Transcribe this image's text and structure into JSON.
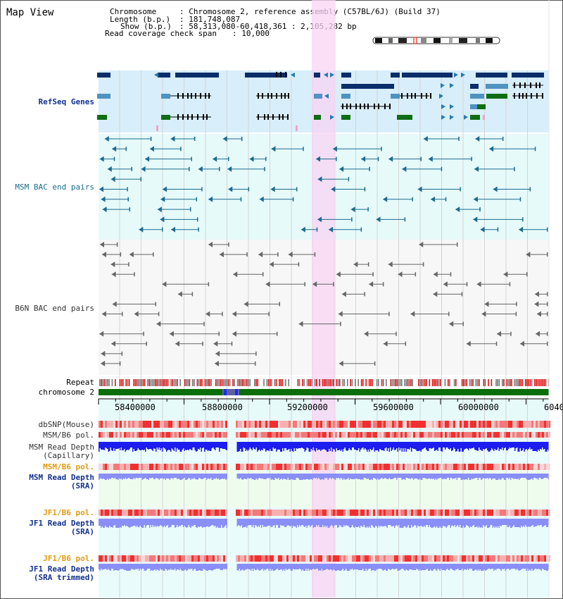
{
  "title": "Map View",
  "header": {
    "chromosome_label": "Chromosome",
    "chromosome_value": ": Chromosome 2, reference assembly (C57BL/6J) (Build 37)",
    "length_label": "Length (b.p.)",
    "length_value": ": 181,748,087",
    "show_label": "Show (b.p.)",
    "show_value": ": 58,313,080-60,418,361 : 2,105,282 bp",
    "coverage_label": "Read coverage check span",
    "coverage_value": ": 10,000"
  },
  "tracks": {
    "refseq": "RefSeq Genes",
    "msm_bac": "MSM BAC end pairs",
    "b6n_bac": "B6N BAC end pairs",
    "repeat": "Repeat",
    "chromosome": "chromosome 2",
    "dbsnp": "dbSNP(Mouse)",
    "msm_b6_pol": "MSM/B6 pol.",
    "msm_read_depth": "MSM Read Depth",
    "capillary": "(Capillary)",
    "msm_b6_pol2": "MSM/B6 pol.",
    "msm_read_depth_sra": "MSM Read Depth",
    "sra": "(SRA)",
    "jf1_b6_pol": "JF1/B6 pol.",
    "jf1_read_depth": "JF1 Read Depth",
    "jf1_sra": "(SRA)",
    "jf1_b6_pol2": "JF1/B6 pol.",
    "jf1_read_depth2": "JF1 Read Depth",
    "jf1_sra_trimmed": "(SRA trimmed)"
  },
  "axis": {
    "ticks": [
      "58400000",
      "58800000",
      "59200000",
      "59600000",
      "60000000",
      "6040"
    ]
  },
  "colors": {
    "refseq_bg": "#d8eefa",
    "msm_bg": "#e6fafa",
    "b6n_bg": "#f7f7f7",
    "highlight": "#fadcf5",
    "refseq_dark": "#0b2e6a",
    "refseq_mid": "#4f93c0",
    "refseq_green": "#0f6e13",
    "msm_bac": "#1c6a8e",
    "b6n_bac": "#666666",
    "chromosome": "#0a6e0a",
    "read_depth_capillary": "#1d1df0",
    "read_depth_sra": "#8a8ff7"
  }
}
